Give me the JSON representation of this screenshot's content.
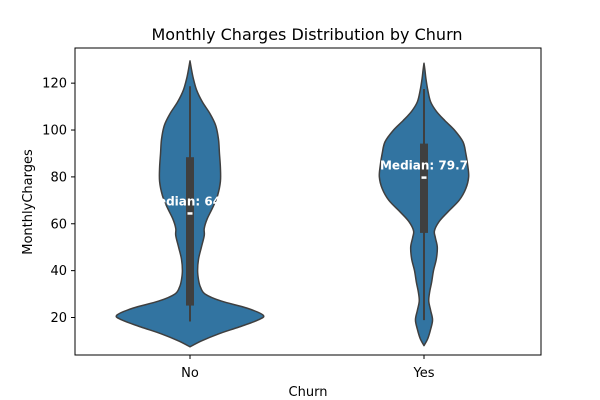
{
  "chart_data": {
    "type": "violin",
    "title": "Monthly Charges Distribution by Churn",
    "xlabel": "Churn",
    "ylabel": "MonthlyCharges",
    "categories": [
      "No",
      "Yes"
    ],
    "ylim": [
      4,
      135
    ],
    "yticks": [
      20,
      40,
      60,
      80,
      100,
      120
    ],
    "grid": false,
    "fill_color": "#3274a1",
    "edge_color": "#3f3f3f",
    "box_color": "#3f3f3f",
    "violins": [
      {
        "category": "No",
        "min": 18.3,
        "q1": 25.1,
        "median": 64.4,
        "q3": 88.4,
        "max": 118.7,
        "median_label": "Median: 64.4",
        "density": [
          [
            7.5,
            0.0
          ],
          [
            10,
            0.12
          ],
          [
            13,
            0.3
          ],
          [
            16,
            0.52
          ],
          [
            19,
            0.72
          ],
          [
            21,
            0.77
          ],
          [
            24,
            0.6
          ],
          [
            27,
            0.33
          ],
          [
            30,
            0.16
          ],
          [
            33,
            0.11
          ],
          [
            36,
            0.09
          ],
          [
            40,
            0.08
          ],
          [
            45,
            0.09
          ],
          [
            50,
            0.12
          ],
          [
            55,
            0.15
          ],
          [
            58,
            0.15
          ],
          [
            62,
            0.18
          ],
          [
            67,
            0.24
          ],
          [
            72,
            0.29
          ],
          [
            78,
            0.32
          ],
          [
            84,
            0.32
          ],
          [
            90,
            0.31
          ],
          [
            96,
            0.3
          ],
          [
            102,
            0.27
          ],
          [
            107,
            0.21
          ],
          [
            112,
            0.13
          ],
          [
            117,
            0.07
          ],
          [
            122,
            0.035
          ],
          [
            126,
            0.015
          ],
          [
            129.5,
            0.0
          ]
        ]
      },
      {
        "category": "Yes",
        "min": 18.9,
        "q1": 56.1,
        "median": 79.7,
        "q3": 94.2,
        "max": 117.5,
        "median_label": "Median: 79.7",
        "density": [
          [
            8,
            0.0
          ],
          [
            11,
            0.04
          ],
          [
            15,
            0.07
          ],
          [
            19,
            0.09
          ],
          [
            23,
            0.07
          ],
          [
            27,
            0.05
          ],
          [
            31,
            0.06
          ],
          [
            35,
            0.08
          ],
          [
            40,
            0.1
          ],
          [
            45,
            0.13
          ],
          [
            50,
            0.14
          ],
          [
            54,
            0.12
          ],
          [
            57,
            0.11
          ],
          [
            61,
            0.16
          ],
          [
            65,
            0.25
          ],
          [
            70,
            0.37
          ],
          [
            75,
            0.44
          ],
          [
            80,
            0.47
          ],
          [
            85,
            0.46
          ],
          [
            90,
            0.44
          ],
          [
            95,
            0.41
          ],
          [
            100,
            0.32
          ],
          [
            104,
            0.22
          ],
          [
            108,
            0.13
          ],
          [
            112,
            0.07
          ],
          [
            117,
            0.04
          ],
          [
            122,
            0.02
          ],
          [
            125.5,
            0.01
          ],
          [
            128.5,
            0.0
          ]
        ]
      }
    ]
  }
}
